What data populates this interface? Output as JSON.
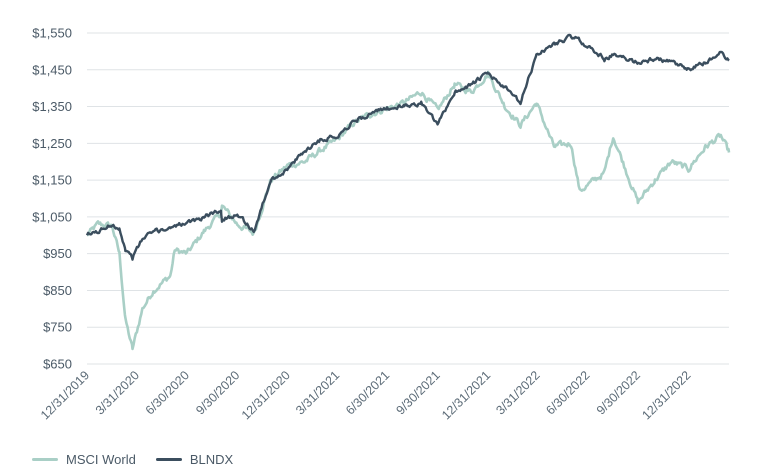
{
  "chart_data": {
    "type": "line",
    "title": "",
    "xlabel": "",
    "ylabel": "",
    "y_currency_prefix": "$",
    "ylim": [
      650,
      1550
    ],
    "y_ticks": [
      "$1,550",
      "$1,450",
      "$1,350",
      "$1,250",
      "$1,150",
      "$1,050",
      "$950",
      "$850",
      "$750",
      "$650"
    ],
    "y_tick_values": [
      1550,
      1450,
      1350,
      1250,
      1150,
      1050,
      950,
      850,
      750,
      650
    ],
    "x_ticks": [
      "12/31/2019",
      "3/31/2020",
      "6/30/2020",
      "9/30/2020",
      "12/31/2020",
      "3/31/2021",
      "6/30/2021",
      "9/30/2021",
      "12/31/2021",
      "3/31/2022",
      "6/30/2022",
      "9/30/2022",
      "12/31/2022"
    ],
    "x_range": [
      "2019-12-31",
      "2023-03-15"
    ],
    "grid": "horizontal",
    "legend_position": "bottom-left",
    "series": [
      {
        "name": "MSCI World",
        "color": "#a9cfc6",
        "x": [
          "2019-12-31",
          "2020-01-20",
          "2020-02-15",
          "2020-02-28",
          "2020-03-10",
          "2020-03-23",
          "2020-04-10",
          "2020-04-30",
          "2020-05-31",
          "2020-06-08",
          "2020-06-30",
          "2020-07-31",
          "2020-08-31",
          "2020-09-02",
          "2020-09-30",
          "2020-10-30",
          "2020-11-30",
          "2020-12-31",
          "2021-01-31",
          "2021-02-28",
          "2021-03-31",
          "2021-04-30",
          "2021-05-31",
          "2021-06-30",
          "2021-07-31",
          "2021-08-31",
          "2021-09-30",
          "2021-10-31",
          "2021-11-30",
          "2021-12-31",
          "2022-01-31",
          "2022-02-28",
          "2022-03-29",
          "2022-04-30",
          "2022-05-31",
          "2022-06-16",
          "2022-07-31",
          "2022-08-16",
          "2022-09-30",
          "2022-10-31",
          "2022-11-30",
          "2022-12-31",
          "2023-01-31",
          "2023-02-28",
          "2023-03-15"
        ],
        "values": [
          1000,
          1030,
          1025,
          950,
          770,
          690,
          800,
          850,
          890,
          960,
          950,
          1010,
          1060,
          1080,
          1030,
          1005,
          1150,
          1190,
          1200,
          1230,
          1260,
          1305,
          1330,
          1345,
          1360,
          1390,
          1340,
          1410,
          1390,
          1440,
          1350,
          1300,
          1360,
          1240,
          1250,
          1120,
          1170,
          1270,
          1090,
          1150,
          1200,
          1180,
          1240,
          1270,
          1225
        ]
      },
      {
        "name": "BLNDX",
        "color": "#3b4e5e",
        "x": [
          "2019-12-31",
          "2020-01-20",
          "2020-02-15",
          "2020-02-28",
          "2020-03-10",
          "2020-03-23",
          "2020-04-10",
          "2020-04-30",
          "2020-05-31",
          "2020-06-08",
          "2020-06-30",
          "2020-07-31",
          "2020-08-31",
          "2020-09-02",
          "2020-09-30",
          "2020-10-30",
          "2020-11-30",
          "2020-12-31",
          "2021-01-31",
          "2021-02-28",
          "2021-03-31",
          "2021-04-30",
          "2021-05-31",
          "2021-06-30",
          "2021-07-31",
          "2021-08-31",
          "2021-09-30",
          "2021-10-31",
          "2021-11-30",
          "2021-12-31",
          "2022-01-31",
          "2022-02-28",
          "2022-03-29",
          "2022-04-30",
          "2022-05-31",
          "2022-06-16",
          "2022-07-31",
          "2022-08-16",
          "2022-09-30",
          "2022-10-31",
          "2022-11-30",
          "2022-12-31",
          "2023-01-31",
          "2023-02-28",
          "2023-03-15"
        ],
        "values": [
          1000,
          1010,
          1030,
          1020,
          960,
          940,
          990,
          1010,
          1020,
          1030,
          1030,
          1050,
          1070,
          1040,
          1060,
          1010,
          1150,
          1180,
          1230,
          1260,
          1270,
          1310,
          1330,
          1345,
          1350,
          1360,
          1300,
          1390,
          1410,
          1440,
          1400,
          1360,
          1490,
          1520,
          1540,
          1530,
          1480,
          1490,
          1470,
          1480,
          1470,
          1450,
          1470,
          1495,
          1475
        ]
      }
    ]
  }
}
